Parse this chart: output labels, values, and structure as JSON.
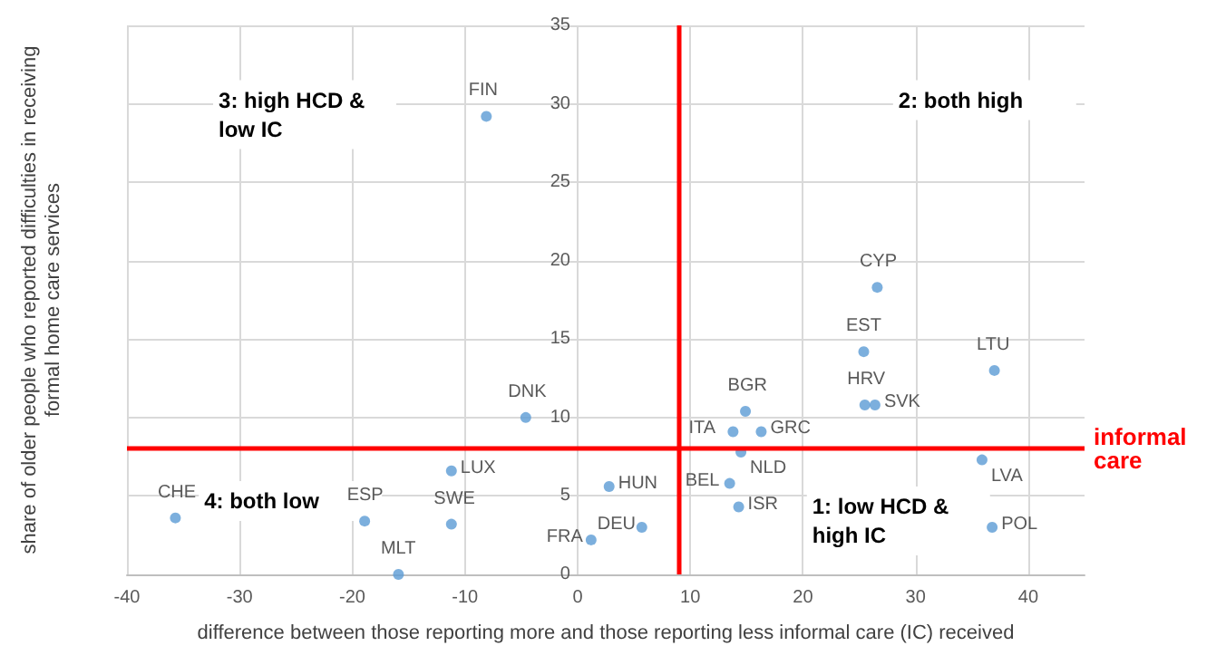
{
  "chart_data": {
    "type": "scatter",
    "xlabel": "difference between those reporting more and those reporting less informal care (IC) received",
    "ylabel": "share of older people who reported difficulties in receiving formal home care services",
    "x": [
      -8.1,
      26.6,
      25.4,
      37.0,
      25.5,
      26.4,
      14.9,
      13.8,
      16.3,
      14.5,
      35.9,
      2.8,
      13.5,
      14.3,
      5.7,
      1.2,
      36.8,
      -4.6,
      -11.2,
      -35.7,
      -18.9,
      -11.2,
      -15.9
    ],
    "values": [
      29.2,
      18.3,
      14.2,
      13.0,
      10.8,
      10.8,
      10.4,
      9.1,
      9.1,
      7.8,
      7.3,
      5.6,
      5.8,
      4.3,
      3.0,
      2.2,
      3.0,
      10.0,
      6.6,
      3.6,
      3.4,
      3.2,
      0
    ],
    "color": "#5b9bd5",
    "marker": "circle",
    "grid": true,
    "xlim": [
      -40,
      45
    ],
    "xticks": [
      -40,
      -30,
      -20,
      -10,
      0,
      10,
      20,
      30,
      40
    ],
    "ylim": [
      0,
      35
    ],
    "yticks": [
      0,
      5,
      10,
      15,
      20,
      25,
      30,
      35
    ],
    "ref_lines": [
      {
        "axis": "x",
        "value": 9,
        "color": "#ff0000"
      },
      {
        "axis": "y",
        "value": 8,
        "label": "informal care",
        "color": "#ff0000"
      }
    ],
    "annotations": [
      "3: high HCD & low IC",
      "2: both high",
      "4: both low",
      "1: low HCD & high IC",
      {
        "text": "FIN",
        "x": -8.1,
        "y": 29.2
      },
      {
        "text": "CYP",
        "x": 26.6,
        "y": 18.3
      },
      {
        "text": "EST",
        "x": 25.4,
        "y": 14.2
      },
      {
        "text": "LTU",
        "x": 37.0,
        "y": 13.0
      },
      {
        "text": "HRV",
        "x": 25.5,
        "y": 10.8
      },
      {
        "text": "SVK",
        "x": 26.4,
        "y": 10.8
      },
      {
        "text": "BGR",
        "x": 14.9,
        "y": 10.4
      },
      {
        "text": "ITA",
        "x": 13.8,
        "y": 9.1
      },
      {
        "text": "GRC",
        "x": 16.3,
        "y": 9.1
      },
      {
        "text": "NLD",
        "x": 14.5,
        "y": 7.8
      },
      {
        "text": "LVA",
        "x": 35.9,
        "y": 7.3
      },
      {
        "text": "HUN",
        "x": 2.8,
        "y": 5.6
      },
      {
        "text": "BEL",
        "x": 13.5,
        "y": 5.8
      },
      {
        "text": "ISR",
        "x": 14.3,
        "y": 4.3
      },
      {
        "text": "DEU",
        "x": 5.7,
        "y": 3.0
      },
      {
        "text": "FRA",
        "x": 1.2,
        "y": 2.2
      },
      {
        "text": "POL",
        "x": 36.8,
        "y": 3.0
      },
      {
        "text": "DNK",
        "x": -4.6,
        "y": 10.0
      },
      {
        "text": "LUX",
        "x": -11.2,
        "y": 6.6
      },
      {
        "text": "CHE",
        "x": -35.7,
        "y": 3.6
      },
      {
        "text": "ESP",
        "x": -18.9,
        "y": 3.4
      },
      {
        "text": "SWE",
        "x": -11.2,
        "y": 3.2
      },
      {
        "text": "MLT",
        "x": -15.9,
        "y": 0
      }
    ]
  }
}
